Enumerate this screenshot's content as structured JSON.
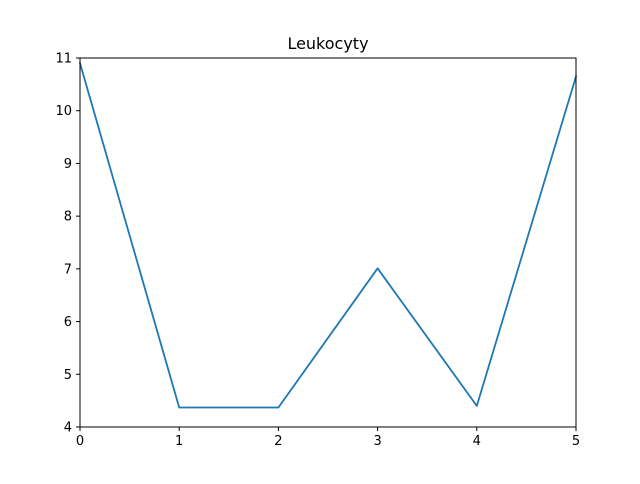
{
  "chart_data": {
    "type": "line",
    "title": "Leukocyty",
    "xlabel": "",
    "ylabel": "",
    "x": [
      0,
      1,
      2,
      3,
      4,
      5
    ],
    "series": [
      {
        "color": "#1f77b4",
        "values": [
          10.9,
          4.37,
          4.37,
          7.01,
          4.4,
          10.65
        ]
      }
    ],
    "xlim": [
      0,
      5
    ],
    "ylim": [
      4,
      11
    ],
    "xticks": [
      "0",
      "1",
      "2",
      "3",
      "4",
      "5"
    ],
    "yticks": [
      "4",
      "5",
      "6",
      "7",
      "8",
      "9",
      "10",
      "11"
    ],
    "grid": false,
    "legend": "none"
  }
}
